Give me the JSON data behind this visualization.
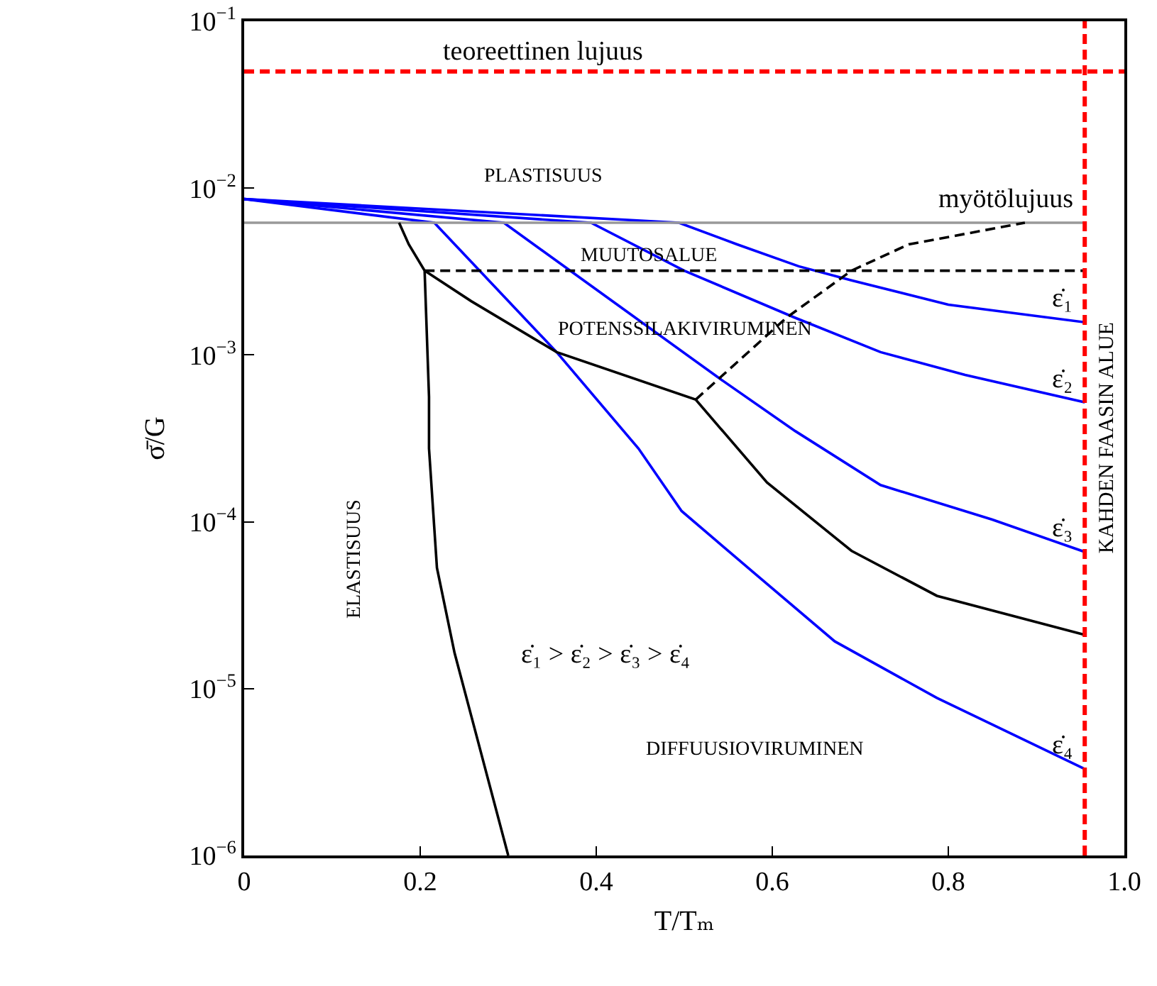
{
  "chart_data": {
    "type": "line",
    "xlabel": "T/Tₘ",
    "ylabel": "σ̄/G",
    "log": "y",
    "grid": false,
    "legend": false,
    "marker": "none",
    "xlim": [
      0,
      1
    ],
    "xticks": [
      0,
      0.2,
      0.4,
      0.6,
      0.8,
      {
        "value": 1,
        "label": "1.0"
      }
    ],
    "ylim": [
      1e-06,
      0.1
    ],
    "yticks": [
      {
        "value": 1e-06,
        "label": "10$^{−6}$"
      },
      {
        "value": 1e-05,
        "label": "10$^{−5}$"
      },
      {
        "value": 0.0001,
        "label": "10$^{−4}$"
      },
      {
        "value": 0.001,
        "label": "10$^{−3}$"
      },
      {
        "value": 0.01,
        "label": "10$^{−2}$"
      },
      {
        "value": 0.1,
        "label": "10$^{−1}$"
      }
    ],
    "series": [
      {
        "name": "ε̇₁",
        "color": "#0000ff",
        "line_style": "solid",
        "x": [
          0,
          0.494,
          0.56,
          0.63,
          0.69,
          0.8,
          0.955
        ],
        "values": [
          0.0086,
          0.0062,
          0.0046,
          0.0034,
          0.0028,
          0.002,
          0.00157
        ]
      },
      {
        "name": "ε̇₂",
        "color": "#0000ff",
        "line_style": "solid",
        "x": [
          0,
          0.394,
          0.5,
          0.626,
          0.723,
          0.819,
          0.955
        ],
        "values": [
          0.0086,
          0.0062,
          0.0032,
          0.00167,
          0.00104,
          0.00076,
          0.00052
        ]
      },
      {
        "name": "ε̇₃",
        "color": "#0000ff",
        "line_style": "solid",
        "x": [
          0,
          0.295,
          0.42,
          0.539,
          0.626,
          0.723,
          0.85,
          0.955
        ],
        "values": [
          0.0086,
          0.0062,
          0.00207,
          0.00073,
          0.00035,
          0.000166,
          0.000103,
          6.6e-05
        ]
      },
      {
        "name": "ε̇₄",
        "color": "#0000ff",
        "line_style": "solid",
        "x": [
          0,
          0.216,
          0.355,
          0.448,
          0.497,
          0.58,
          0.671,
          0.787,
          0.955
        ],
        "values": [
          0.0086,
          0.0062,
          0.00104,
          0.000275,
          0.000116,
          4.9e-05,
          1.92e-05,
          8.8e-06,
          3.3e-06
        ]
      },
      {
        "name": "myötölujuus",
        "color": "#999999",
        "line_style": "solid",
        "x": [
          0,
          0.955
        ],
        "values": [
          0.0062,
          0.0062
        ]
      },
      {
        "color": "#000000",
        "line_style": "solid",
        "x": [
          0.176,
          0.187,
          0.205,
          0.21,
          0.21,
          0.219,
          0.239,
          0.3
        ],
        "values": [
          0.0062,
          0.0046,
          0.0032,
          0.00056,
          0.000275,
          5.3e-05,
          1.64e-05,
          1e-06
        ]
      },
      {
        "color": "#000000",
        "line_style": "solid",
        "x": [
          0.205,
          0.258,
          0.355,
          0.513,
          0.594,
          0.69,
          0.787,
          0.955
        ],
        "values": [
          0.0032,
          0.0021,
          0.00104,
          0.00054,
          0.000172,
          6.7e-05,
          3.6e-05,
          2.1e-05
        ]
      },
      {
        "color": "#000000",
        "line_style": "dashed",
        "x": [
          0.205,
          0.955
        ],
        "values": [
          0.0032,
          0.0032
        ]
      },
      {
        "color": "#000000",
        "line_style": "dashed",
        "x": [
          0.513,
          0.616,
          0.69,
          0.755,
          0.887
        ],
        "values": [
          0.00054,
          0.00167,
          0.0032,
          0.0046,
          0.0062
        ]
      }
    ],
    "ref_lines": [
      {
        "axis": "y",
        "value": 0.05,
        "label": "teoreettinen lujuus",
        "color": "#ff0000",
        "line_style": "dashed"
      },
      {
        "axis": "x",
        "value": 0.955,
        "label": "KAHDEN FAASIN ALUE",
        "color": "#ff0000",
        "line_style": "dashed"
      }
    ],
    "annotations": [
      "PLASTISUUS",
      "MUUTOSALUE",
      "POTENSSILAKIVIRUMINEN",
      "ELASTISUUS",
      "ε̇₁ > ε̇₂ > ε̇₃ > ε̇₄",
      "DIFFUUSIOVIRUMINEN"
    ]
  }
}
